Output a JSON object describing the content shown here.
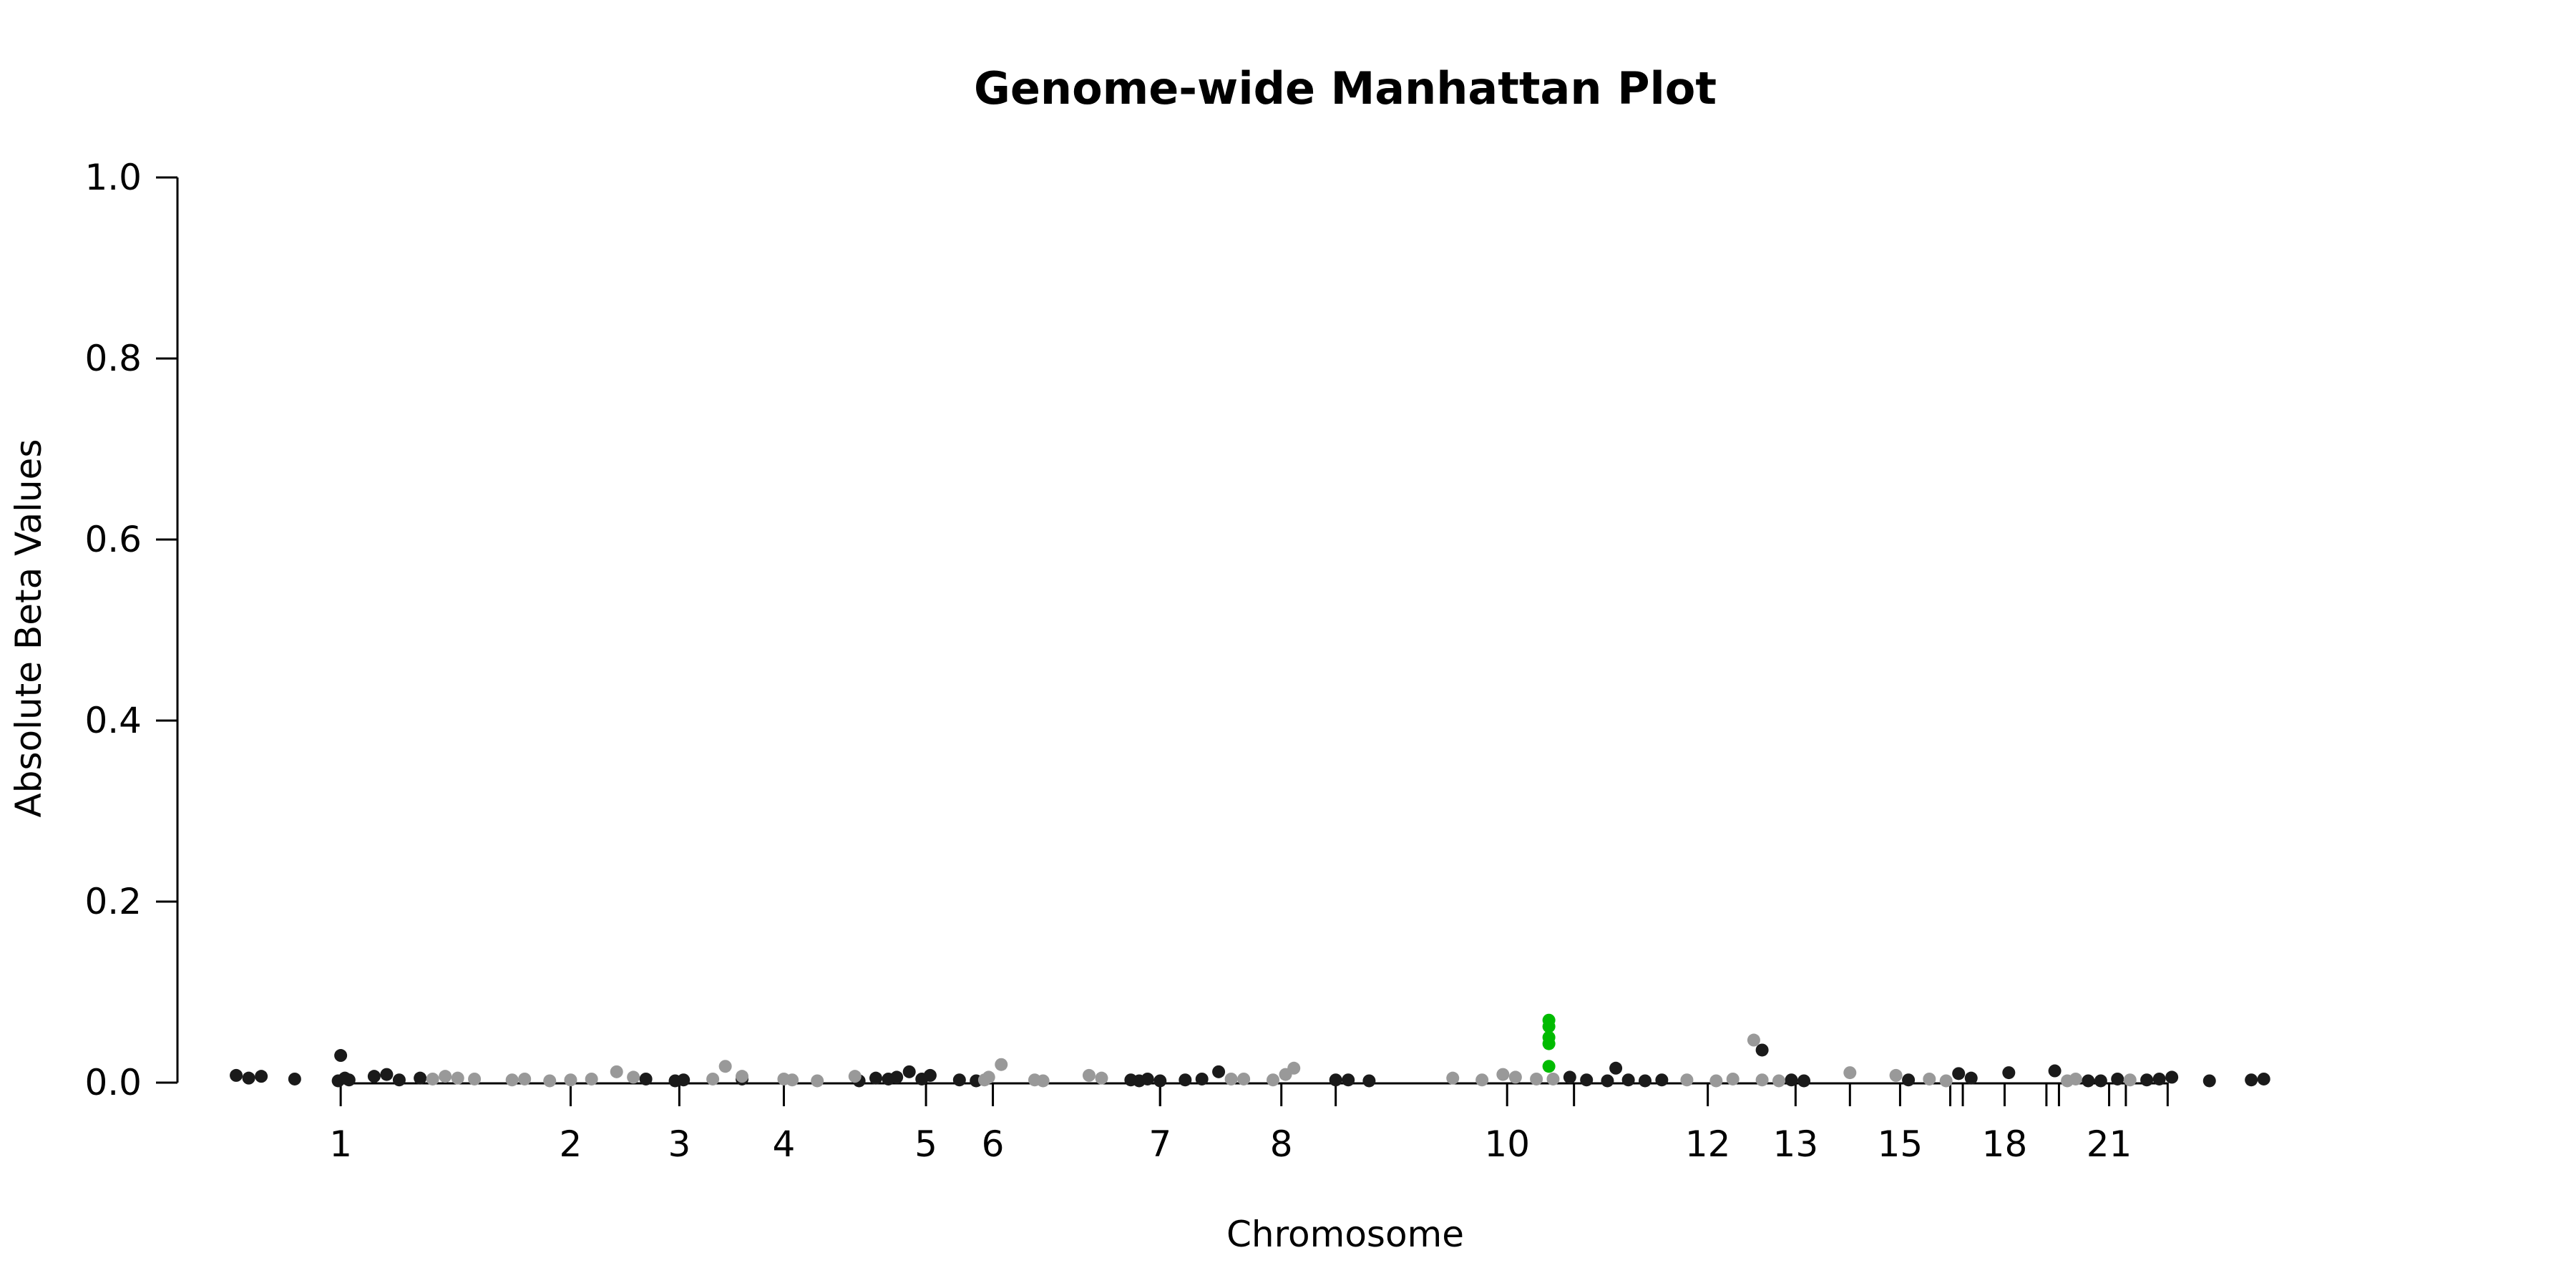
{
  "chart_data": {
    "type": "scatter",
    "title": "Genome-wide Manhattan Plot",
    "xlabel": "Chromosome",
    "ylabel": "Absolute Beta Values",
    "ylim": [
      0,
      1.0
    ],
    "yticks": [
      "0.0",
      "0.2",
      "0.4",
      "0.6",
      "0.8",
      "1.0"
    ],
    "xlim": [
      0,
      27
    ],
    "chromosome_ticks": [
      {
        "label": "1",
        "x": 1.55
      },
      {
        "label": "2",
        "x": 4.3
      },
      {
        "label": "3",
        "x": 5.6
      },
      {
        "label": "4",
        "x": 6.85
      },
      {
        "label": "5",
        "x": 8.55
      },
      {
        "label": "6",
        "x": 9.35
      },
      {
        "label": "",
        "x": 11.35
      },
      {
        "label": "7",
        "x": 11.35
      },
      {
        "label": "8",
        "x": 12.8
      },
      {
        "label": "",
        "x": 13.45
      },
      {
        "label": "10",
        "x": 15.5
      },
      {
        "label": "",
        "x": 16.3
      },
      {
        "label": "12",
        "x": 17.9
      },
      {
        "label": "13",
        "x": 18.95
      },
      {
        "label": "",
        "x": 19.6
      },
      {
        "label": "15",
        "x": 20.2
      },
      {
        "label": "",
        "x": 20.8
      },
      {
        "label": "",
        "x": 20.95
      },
      {
        "label": "18",
        "x": 21.45
      },
      {
        "label": "",
        "x": 21.95
      },
      {
        "label": "",
        "x": 22.1
      },
      {
        "label": "21",
        "x": 22.7
      },
      {
        "label": "",
        "x": 22.9
      },
      {
        "label": "",
        "x": 23.4
      }
    ],
    "colors": {
      "dark": "#1a1a1a",
      "light": "#999999",
      "highlight": "#00bb00"
    },
    "series": [
      {
        "color_key": "dark",
        "points": [
          [
            0.3,
            0.008
          ],
          [
            0.45,
            0.005
          ],
          [
            0.6,
            0.007
          ],
          [
            1.0,
            0.004
          ],
          [
            1.65,
            0.003
          ],
          [
            1.52,
            0.002
          ],
          [
            1.55,
            0.03
          ],
          [
            1.6,
            0.005
          ],
          [
            1.95,
            0.007
          ],
          [
            2.1,
            0.009
          ],
          [
            2.25,
            0.003
          ],
          [
            2.5,
            0.005
          ],
          [
            5.2,
            0.004
          ],
          [
            5.55,
            0.002
          ],
          [
            5.65,
            0.003
          ],
          [
            6.35,
            0.004
          ],
          [
            7.75,
            0.002
          ],
          [
            7.95,
            0.005
          ],
          [
            8.1,
            0.004
          ],
          [
            8.2,
            0.006
          ],
          [
            8.35,
            0.012
          ],
          [
            8.5,
            0.004
          ],
          [
            8.6,
            0.008
          ],
          [
            8.95,
            0.003
          ],
          [
            9.15,
            0.002
          ],
          [
            11.0,
            0.003
          ],
          [
            11.1,
            0.002
          ],
          [
            11.2,
            0.004
          ],
          [
            11.35,
            0.002
          ],
          [
            11.65,
            0.003
          ],
          [
            11.85,
            0.004
          ],
          [
            12.05,
            0.012
          ],
          [
            13.45,
            0.003
          ],
          [
            13.6,
            0.003
          ],
          [
            13.85,
            0.002
          ],
          [
            16.25,
            0.006
          ],
          [
            16.45,
            0.003
          ],
          [
            16.7,
            0.002
          ],
          [
            16.8,
            0.016
          ],
          [
            16.95,
            0.003
          ],
          [
            17.15,
            0.002
          ],
          [
            17.35,
            0.003
          ],
          [
            18.55,
            0.036
          ],
          [
            18.9,
            0.003
          ],
          [
            19.05,
            0.002
          ],
          [
            20.3,
            0.003
          ],
          [
            20.9,
            0.01
          ],
          [
            21.05,
            0.005
          ],
          [
            21.5,
            0.011
          ],
          [
            22.05,
            0.013
          ],
          [
            22.45,
            0.002
          ],
          [
            22.6,
            0.002
          ],
          [
            22.8,
            0.004
          ],
          [
            23.15,
            0.003
          ],
          [
            23.3,
            0.004
          ],
          [
            23.45,
            0.006
          ],
          [
            23.9,
            0.002
          ],
          [
            24.4,
            0.003
          ],
          [
            24.55,
            0.004
          ]
        ]
      },
      {
        "color_key": "light",
        "points": [
          [
            2.65,
            0.004
          ],
          [
            2.8,
            0.007
          ],
          [
            2.95,
            0.005
          ],
          [
            3.15,
            0.004
          ],
          [
            3.6,
            0.003
          ],
          [
            3.75,
            0.004
          ],
          [
            4.05,
            0.002
          ],
          [
            4.3,
            0.003
          ],
          [
            4.55,
            0.004
          ],
          [
            4.85,
            0.012
          ],
          [
            5.05,
            0.006
          ],
          [
            6.0,
            0.004
          ],
          [
            6.15,
            0.018
          ],
          [
            6.35,
            0.007
          ],
          [
            6.85,
            0.004
          ],
          [
            6.95,
            0.003
          ],
          [
            7.25,
            0.002
          ],
          [
            7.7,
            0.007
          ],
          [
            9.3,
            0.006
          ],
          [
            9.45,
            0.02
          ],
          [
            9.25,
            0.003
          ],
          [
            9.85,
            0.003
          ],
          [
            9.95,
            0.002
          ],
          [
            10.5,
            0.008
          ],
          [
            10.65,
            0.005
          ],
          [
            12.2,
            0.004
          ],
          [
            12.35,
            0.004
          ],
          [
            12.7,
            0.003
          ],
          [
            12.85,
            0.009
          ],
          [
            12.95,
            0.016
          ],
          [
            14.85,
            0.005
          ],
          [
            15.2,
            0.003
          ],
          [
            15.45,
            0.009
          ],
          [
            15.6,
            0.006
          ],
          [
            15.85,
            0.004
          ],
          [
            16.05,
            0.004
          ],
          [
            17.65,
            0.003
          ],
          [
            18.0,
            0.002
          ],
          [
            18.2,
            0.004
          ],
          [
            18.45,
            0.047
          ],
          [
            18.55,
            0.003
          ],
          [
            18.75,
            0.002
          ],
          [
            19.6,
            0.011
          ],
          [
            20.15,
            0.008
          ],
          [
            20.55,
            0.004
          ],
          [
            20.75,
            0.002
          ],
          [
            22.2,
            0.002
          ],
          [
            22.3,
            0.004
          ],
          [
            22.95,
            0.003
          ]
        ]
      },
      {
        "color_key": "highlight",
        "points": [
          [
            16.0,
            0.069
          ],
          [
            16.0,
            0.062
          ],
          [
            16.0,
            0.05
          ],
          [
            16.0,
            0.043
          ],
          [
            16.0,
            0.018
          ]
        ]
      }
    ]
  }
}
